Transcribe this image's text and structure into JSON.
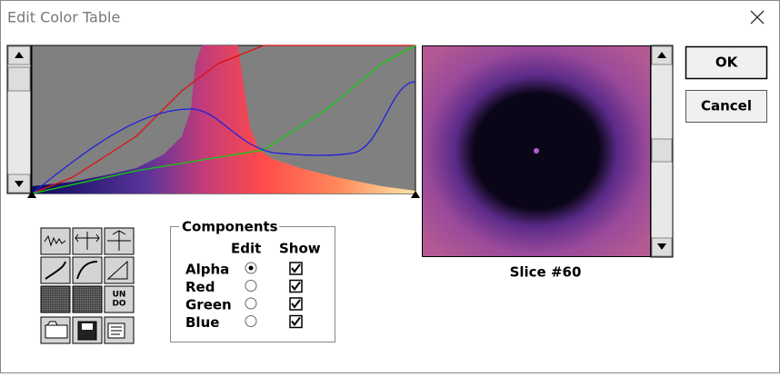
{
  "window": {
    "title": "Edit Color Table"
  },
  "buttons": {
    "ok": "OK",
    "cancel": "Cancel"
  },
  "tools": {
    "undo": [
      "UN",
      "DO"
    ]
  },
  "components": {
    "title": "Components",
    "headers": [
      "Edit",
      "Show"
    ],
    "rows": [
      {
        "label": "Alpha",
        "edit": true,
        "show": true
      },
      {
        "label": "Red",
        "edit": false,
        "show": true
      },
      {
        "label": "Green",
        "edit": false,
        "show": true
      },
      {
        "label": "Blue",
        "edit": false,
        "show": true
      }
    ]
  },
  "preview": {
    "caption": "Slice #60"
  }
}
